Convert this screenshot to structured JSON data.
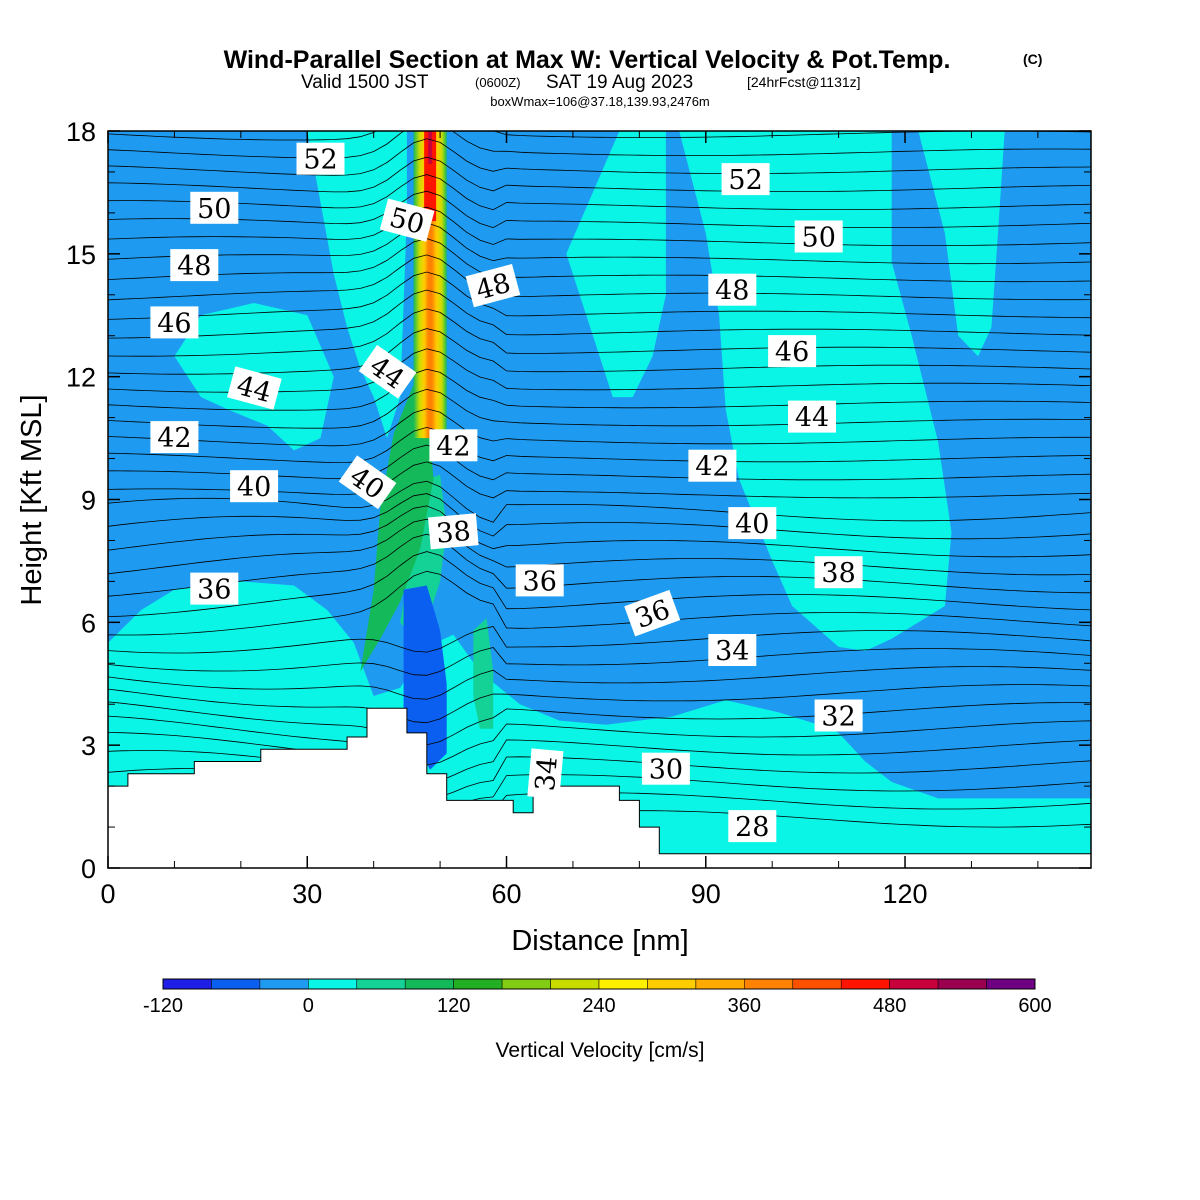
{
  "title": {
    "main": "Wind-Parallel Section at Max W: Vertical Velocity & Pot.Temp.",
    "copyright": "(C)",
    "line2_a": "Valid 1500 JST",
    "line2_b": "(0600Z)",
    "line2_c": "SAT 19 Aug 2023",
    "line2_d": "[24hrFcst@1131z]",
    "line3": "boxWmax=106@37.18,139.93,2476m"
  },
  "chart_data": {
    "type": "heatmap",
    "xlabel": "Distance [nm]",
    "ylabel": "Height [Kft MSL]",
    "xlim": [
      0,
      148
    ],
    "ylim": [
      0,
      18
    ],
    "x_ticks": [
      0,
      30,
      60,
      90,
      120
    ],
    "x_tick_labels": [
      "0",
      "30",
      "60",
      "90",
      "120"
    ],
    "y_ticks": [
      0,
      3,
      6,
      9,
      12,
      15,
      18
    ],
    "y_tick_labels": [
      "0",
      "3",
      "6",
      "9",
      "12",
      "15",
      "18"
    ],
    "colorbar": {
      "label": "Vertical Velocity [cm/s]",
      "levels": [
        -120,
        -80,
        -40,
        0,
        40,
        80,
        120,
        160,
        200,
        240,
        280,
        320,
        360,
        400,
        440,
        480,
        520,
        560,
        600
      ],
      "tick_labels": [
        "-120",
        "0",
        "120",
        "240",
        "360",
        "480",
        "600"
      ],
      "tick_values": [
        -120,
        0,
        120,
        240,
        360,
        480,
        600
      ],
      "colors": [
        "#1e1ee6",
        "#0a5ff0",
        "#1e9bf0",
        "#0af5e6",
        "#14d296",
        "#14b95a",
        "#23af23",
        "#82cd14",
        "#c8dc00",
        "#fff000",
        "#ffcd00",
        "#ffaa00",
        "#ff8200",
        "#ff5000",
        "#ff1400",
        "#c8003c",
        "#9b0050",
        "#6e0082"
      ]
    },
    "vertical_velocity_regions": [
      {
        "level": "0 to 40",
        "description": "weak ascent",
        "x_range": [
          0,
          148
        ]
      },
      {
        "level": "200 to 600",
        "description": "main updraft core",
        "x_center": 48.5,
        "y_range": [
          10.5,
          18
        ]
      },
      {
        "level": "-120 to -80",
        "description": "downdraft",
        "x_center": 48,
        "y_range": [
          3.2,
          6.2
        ]
      }
    ],
    "potential_temperature_contour_labels": [
      {
        "value": "52",
        "x": 32,
        "y": 17.3
      },
      {
        "value": "52",
        "x": 96,
        "y": 16.8
      },
      {
        "value": "50",
        "x": 16,
        "y": 16.1
      },
      {
        "value": "50",
        "x": 45,
        "y": 15.8,
        "angle": 15
      },
      {
        "value": "50",
        "x": 107,
        "y": 15.4
      },
      {
        "value": "48",
        "x": 13,
        "y": 14.7
      },
      {
        "value": "48",
        "x": 58,
        "y": 14.2,
        "angle": -15
      },
      {
        "value": "48",
        "x": 94,
        "y": 14.1
      },
      {
        "value": "46",
        "x": 10,
        "y": 13.3
      },
      {
        "value": "46",
        "x": 103,
        "y": 12.6
      },
      {
        "value": "44",
        "x": 22,
        "y": 11.7,
        "angle": 15
      },
      {
        "value": "44",
        "x": 42,
        "y": 12.1,
        "angle": 35
      },
      {
        "value": "44",
        "x": 106,
        "y": 11.0
      },
      {
        "value": "42",
        "x": 10,
        "y": 10.5
      },
      {
        "value": "42",
        "x": 52,
        "y": 10.3
      },
      {
        "value": "42",
        "x": 91,
        "y": 9.8
      },
      {
        "value": "40",
        "x": 22,
        "y": 9.3
      },
      {
        "value": "40",
        "x": 39,
        "y": 9.4,
        "angle": 35
      },
      {
        "value": "40",
        "x": 97,
        "y": 8.4
      },
      {
        "value": "38",
        "x": 52,
        "y": 8.2,
        "angle": -5
      },
      {
        "value": "38",
        "x": 110,
        "y": 7.2
      },
      {
        "value": "36",
        "x": 16,
        "y": 6.8
      },
      {
        "value": "36",
        "x": 65,
        "y": 7.0
      },
      {
        "value": "36",
        "x": 82,
        "y": 6.2,
        "angle": -20
      },
      {
        "value": "34",
        "x": 94,
        "y": 5.3
      },
      {
        "value": "34",
        "x": 66,
        "y": 2.3,
        "angle": -85
      },
      {
        "value": "32",
        "x": 110,
        "y": 3.7
      },
      {
        "value": "30",
        "x": 84,
        "y": 2.4
      },
      {
        "value": "28",
        "x": 97,
        "y": 1.0
      }
    ],
    "terrain_profile": [
      [
        0,
        2.0
      ],
      [
        3,
        2.0
      ],
      [
        3,
        2.3
      ],
      [
        13,
        2.3
      ],
      [
        13,
        2.6
      ],
      [
        23,
        2.6
      ],
      [
        23,
        2.9
      ],
      [
        36,
        2.9
      ],
      [
        36,
        3.2
      ],
      [
        39,
        3.2
      ],
      [
        39,
        3.9
      ],
      [
        45,
        3.9
      ],
      [
        45,
        3.3
      ],
      [
        48,
        3.3
      ],
      [
        48,
        2.3
      ],
      [
        51,
        2.3
      ],
      [
        51,
        1.65
      ],
      [
        61,
        1.65
      ],
      [
        61,
        1.35
      ],
      [
        64,
        1.35
      ],
      [
        64,
        2.0
      ],
      [
        77,
        2.0
      ],
      [
        77,
        1.65
      ],
      [
        80,
        1.65
      ],
      [
        80,
        1.0
      ],
      [
        83,
        1.0
      ],
      [
        83,
        0.35
      ],
      [
        148,
        0.35
      ]
    ]
  }
}
